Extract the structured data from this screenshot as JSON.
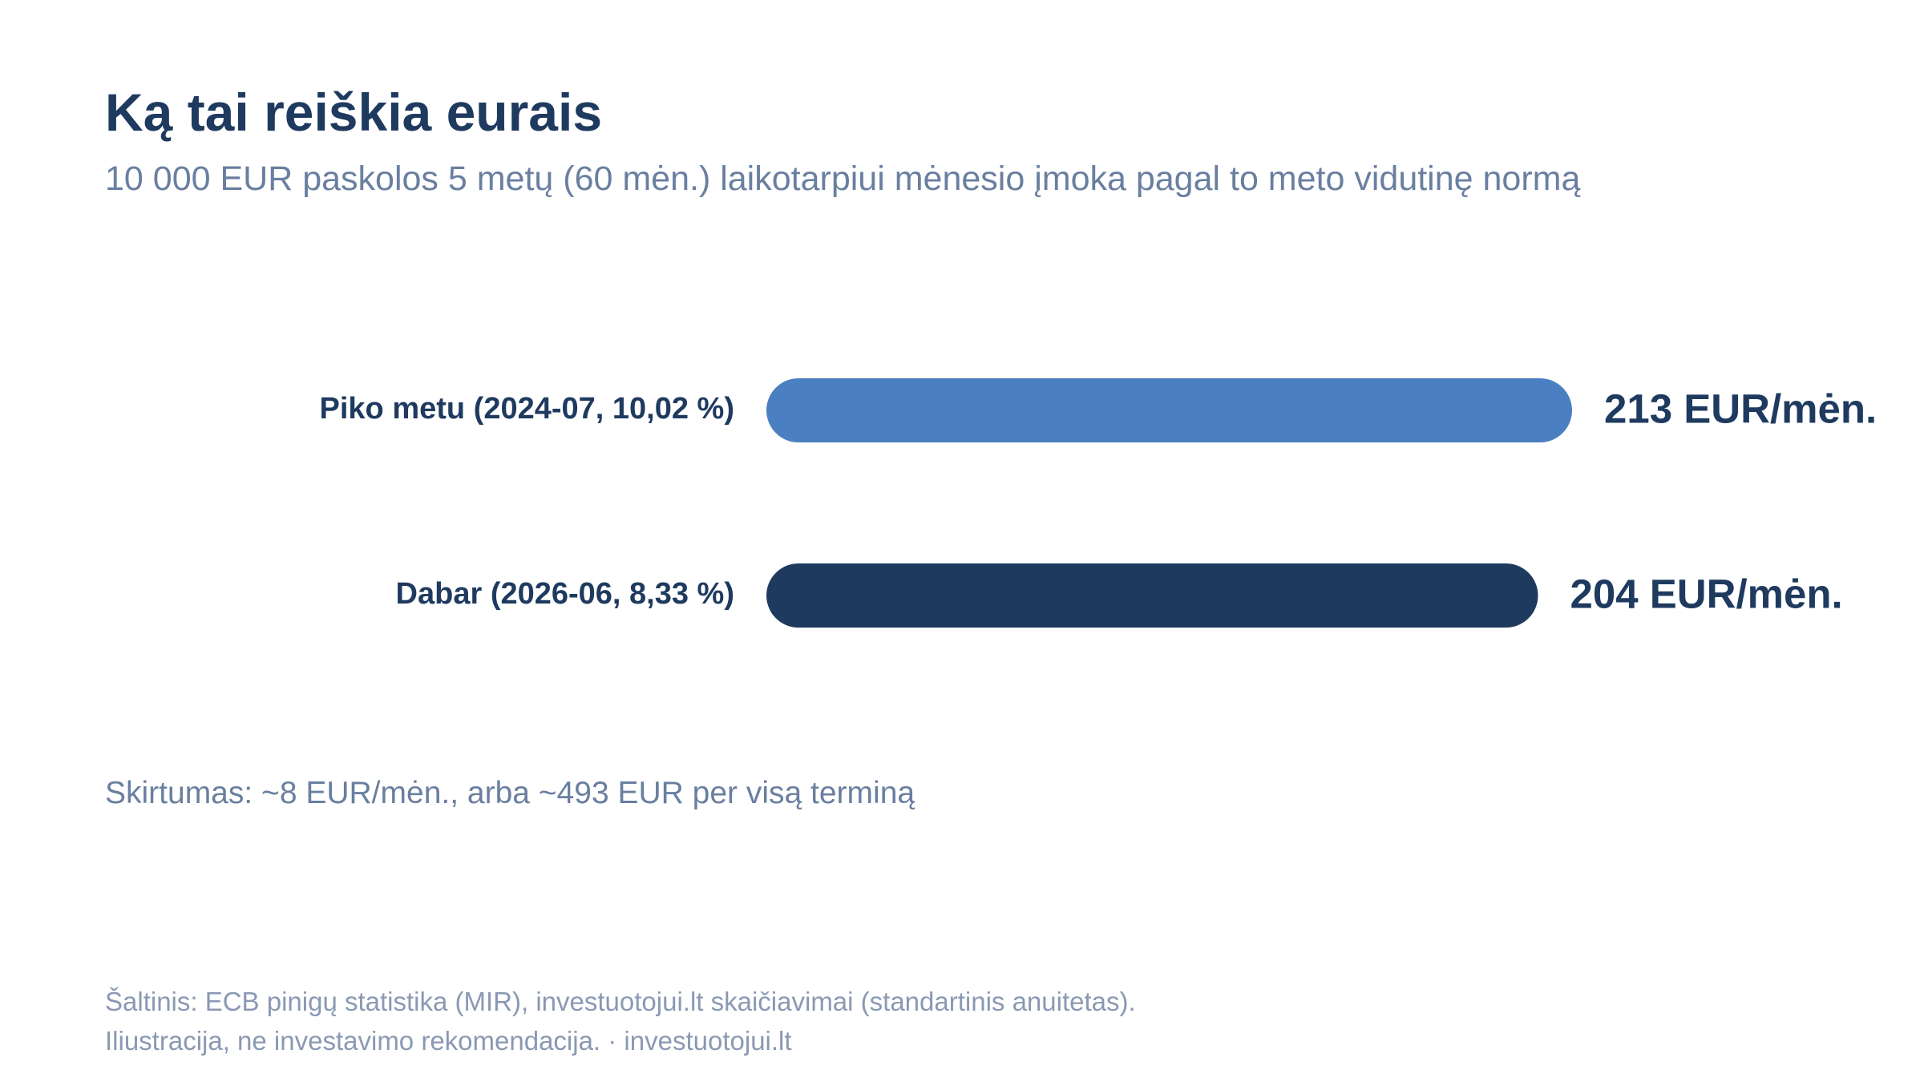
{
  "title": "Ką tai reiškia eurais",
  "subtitle": "10 000 EUR paskolos 5 metų (60 mėn.) laikotarpiui mėnesio įmoka pagal to meto vidutinę normą",
  "note": "Skirtumas: ~8 EUR/mėn., arba ~493 EUR per visą terminą",
  "source": {
    "line1": "Šaltinis: ECB pinigų statistika (MIR), investuotojui.lt skaičiavimai (standartinis anuitetas).",
    "line2": "Iliustracija, ne investavimo rekomendacija. · investuotojui.lt"
  },
  "colors": {
    "peak": "#4a7fc1",
    "now": "#1f3a5f"
  },
  "chart_data": {
    "type": "bar",
    "orientation": "horizontal",
    "categories": [
      "Piko metu (2024-07, 10,02 %)",
      "Dabar (2026-06, 8,33 %)"
    ],
    "values": [
      213,
      204
    ],
    "value_labels": [
      "213 EUR/mėn.",
      "204 EUR/mėn."
    ],
    "bar_colors": [
      "#4a7fc1",
      "#1f3a5f"
    ],
    "unit": "EUR/mėn.",
    "grid": false,
    "legend": "none"
  }
}
